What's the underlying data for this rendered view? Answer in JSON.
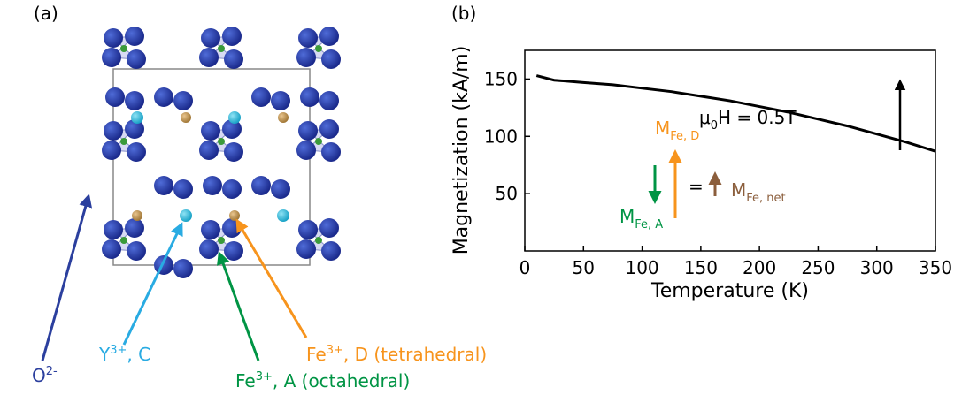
{
  "panel_a": {
    "label": "(a)",
    "oxygen": {
      "base": "O",
      "sup": "2-"
    },
    "yttrium": {
      "base": "Y",
      "sup": "3+",
      "rest": ", C"
    },
    "fe_d": {
      "base": "Fe",
      "sup": "3+",
      "rest": ", D (tetrahedral)"
    },
    "fe_a": {
      "base": "Fe",
      "sup": "3+",
      "rest": ", A (octahedral)"
    }
  },
  "chart_data": {
    "type": "line",
    "panel_label": "(b)",
    "x_label": "Temperature (K)",
    "y_label": "Magnetization (kA/m)",
    "x": [
      10,
      25,
      50,
      75,
      100,
      125,
      150,
      175,
      200,
      225,
      250,
      275,
      300,
      325,
      350
    ],
    "series": [
      {
        "color": "#000000",
        "values": [
          153,
          149,
          147,
          145,
          142,
          139,
          135,
          131,
          126,
          121,
          115,
          109,
          102,
          95,
          87
        ]
      }
    ],
    "xlim": [
      0,
      350
    ],
    "xticks": [
      0,
      50,
      100,
      150,
      200,
      250,
      300,
      350
    ],
    "ylim": [
      0,
      175
    ],
    "yticks": [
      50,
      100,
      150
    ],
    "field": {
      "pre": "μ",
      "sub": "0",
      "post": "H = 0.5T"
    },
    "m_d": {
      "main": "M",
      "sub": "Fe, D"
    },
    "m_a": {
      "main": "M",
      "sub": "Fe, A"
    },
    "m_net": {
      "main": "M",
      "sub": "Fe, net"
    },
    "equals": "="
  }
}
